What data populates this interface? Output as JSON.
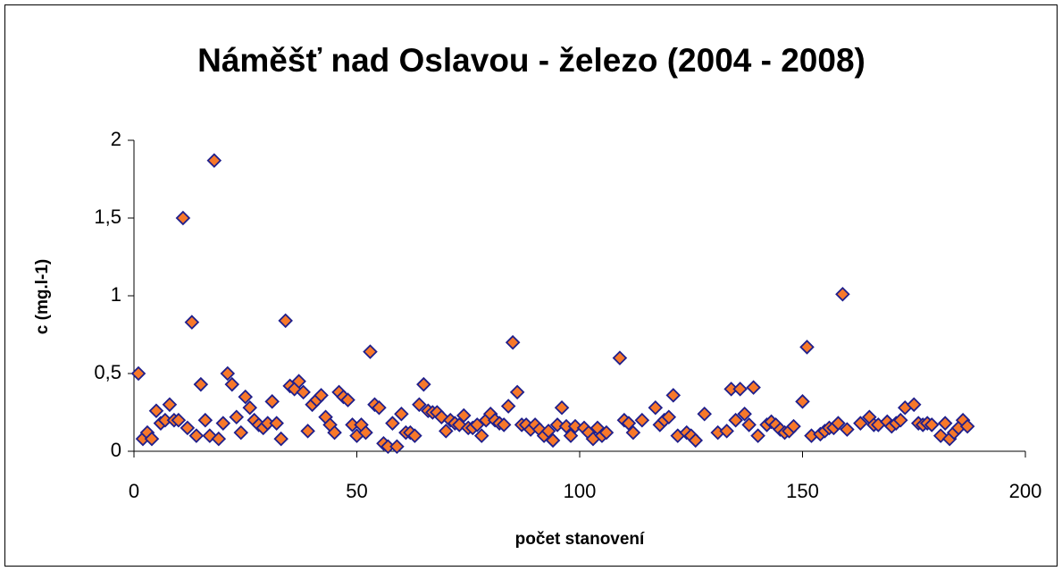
{
  "chart_data": {
    "type": "scatter",
    "title": "Náměšť nad Oslavou - železo (2004 - 2008)",
    "xlabel": "počet stanovení",
    "ylabel": "c (mg.l-1)",
    "x": [
      1,
      2,
      3,
      4,
      5,
      6,
      7,
      8,
      9,
      10,
      11,
      12,
      13,
      14,
      15,
      16,
      17,
      18,
      19,
      20,
      21,
      22,
      23,
      24,
      25,
      26,
      27,
      28,
      29,
      30,
      31,
      32,
      33,
      34,
      35,
      36,
      37,
      38,
      39,
      40,
      41,
      42,
      43,
      44,
      45,
      46,
      47,
      48,
      49,
      50,
      51,
      52,
      53,
      54,
      55,
      56,
      57,
      58,
      59,
      60,
      61,
      62,
      63,
      64,
      65,
      66,
      67,
      68,
      69,
      70,
      71,
      72,
      73,
      74,
      75,
      76,
      77,
      78,
      79,
      80,
      81,
      82,
      83,
      84,
      85,
      86,
      87,
      88,
      89,
      90,
      91,
      92,
      93,
      94,
      95,
      96,
      97,
      98,
      99,
      101,
      102,
      103,
      104,
      105,
      106,
      109,
      110,
      111,
      112,
      114,
      117,
      118,
      119,
      120,
      121,
      122,
      124,
      125,
      126,
      128,
      131,
      133,
      134,
      135,
      136,
      137,
      138,
      139,
      140,
      142,
      143,
      144,
      145,
      146,
      147,
      148,
      150,
      151,
      152,
      154,
      155,
      156,
      157,
      158,
      159,
      160,
      163,
      165,
      166,
      167,
      169,
      170,
      171,
      172,
      173,
      175,
      176,
      177,
      178,
      179,
      181,
      182,
      183,
      184,
      185,
      186,
      187
    ],
    "values": [
      0.5,
      0.08,
      0.12,
      0.08,
      0.26,
      0.18,
      0.2,
      0.3,
      0.2,
      0.2,
      1.5,
      0.15,
      0.83,
      0.1,
      0.43,
      0.2,
      0.1,
      1.87,
      0.08,
      0.18,
      0.5,
      0.43,
      0.22,
      0.12,
      0.35,
      0.28,
      0.2,
      0.17,
      0.15,
      0.18,
      0.32,
      0.18,
      0.08,
      0.84,
      0.42,
      0.4,
      0.45,
      0.38,
      0.13,
      0.3,
      0.33,
      0.36,
      0.22,
      0.17,
      0.12,
      0.38,
      0.35,
      0.33,
      0.17,
      0.1,
      0.17,
      0.12,
      0.64,
      0.3,
      0.28,
      0.05,
      0.03,
      0.18,
      0.03,
      0.24,
      0.12,
      0.12,
      0.1,
      0.3,
      0.43,
      0.26,
      0.25,
      0.25,
      0.22,
      0.13,
      0.2,
      0.18,
      0.17,
      0.23,
      0.15,
      0.15,
      0.17,
      0.1,
      0.2,
      0.24,
      0.2,
      0.18,
      0.17,
      0.29,
      0.7,
      0.38,
      0.17,
      0.17,
      0.14,
      0.17,
      0.14,
      0.1,
      0.13,
      0.07,
      0.17,
      0.28,
      0.16,
      0.1,
      0.16,
      0.15,
      0.12,
      0.08,
      0.15,
      0.1,
      0.12,
      0.6,
      0.2,
      0.18,
      0.12,
      0.2,
      0.28,
      0.17,
      0.2,
      0.22,
      0.36,
      0.1,
      0.12,
      0.1,
      0.07,
      0.24,
      0.12,
      0.13,
      0.4,
      0.2,
      0.4,
      0.24,
      0.17,
      0.41,
      0.1,
      0.17,
      0.19,
      0.17,
      0.14,
      0.12,
      0.13,
      0.16,
      0.32,
      0.67,
      0.1,
      0.11,
      0.13,
      0.15,
      0.15,
      0.18,
      1.01,
      0.14,
      0.18,
      0.22,
      0.17,
      0.17,
      0.19,
      0.16,
      0.18,
      0.2,
      0.28,
      0.3,
      0.18,
      0.17,
      0.18,
      0.17,
      0.1,
      0.18,
      0.08,
      0.12,
      0.15,
      0.2,
      0.16
    ],
    "color": "#f7782a",
    "edge_color": "#1f1f8c",
    "xlim": [
      0,
      200
    ],
    "xticks": [
      0,
      50,
      100,
      150,
      200
    ],
    "ylim": [
      0,
      2
    ],
    "yticks": [
      0,
      {
        "value": 0.5,
        "label": "0,5"
      },
      1,
      {
        "value": 1.5,
        "label": "1,5"
      },
      2
    ]
  }
}
